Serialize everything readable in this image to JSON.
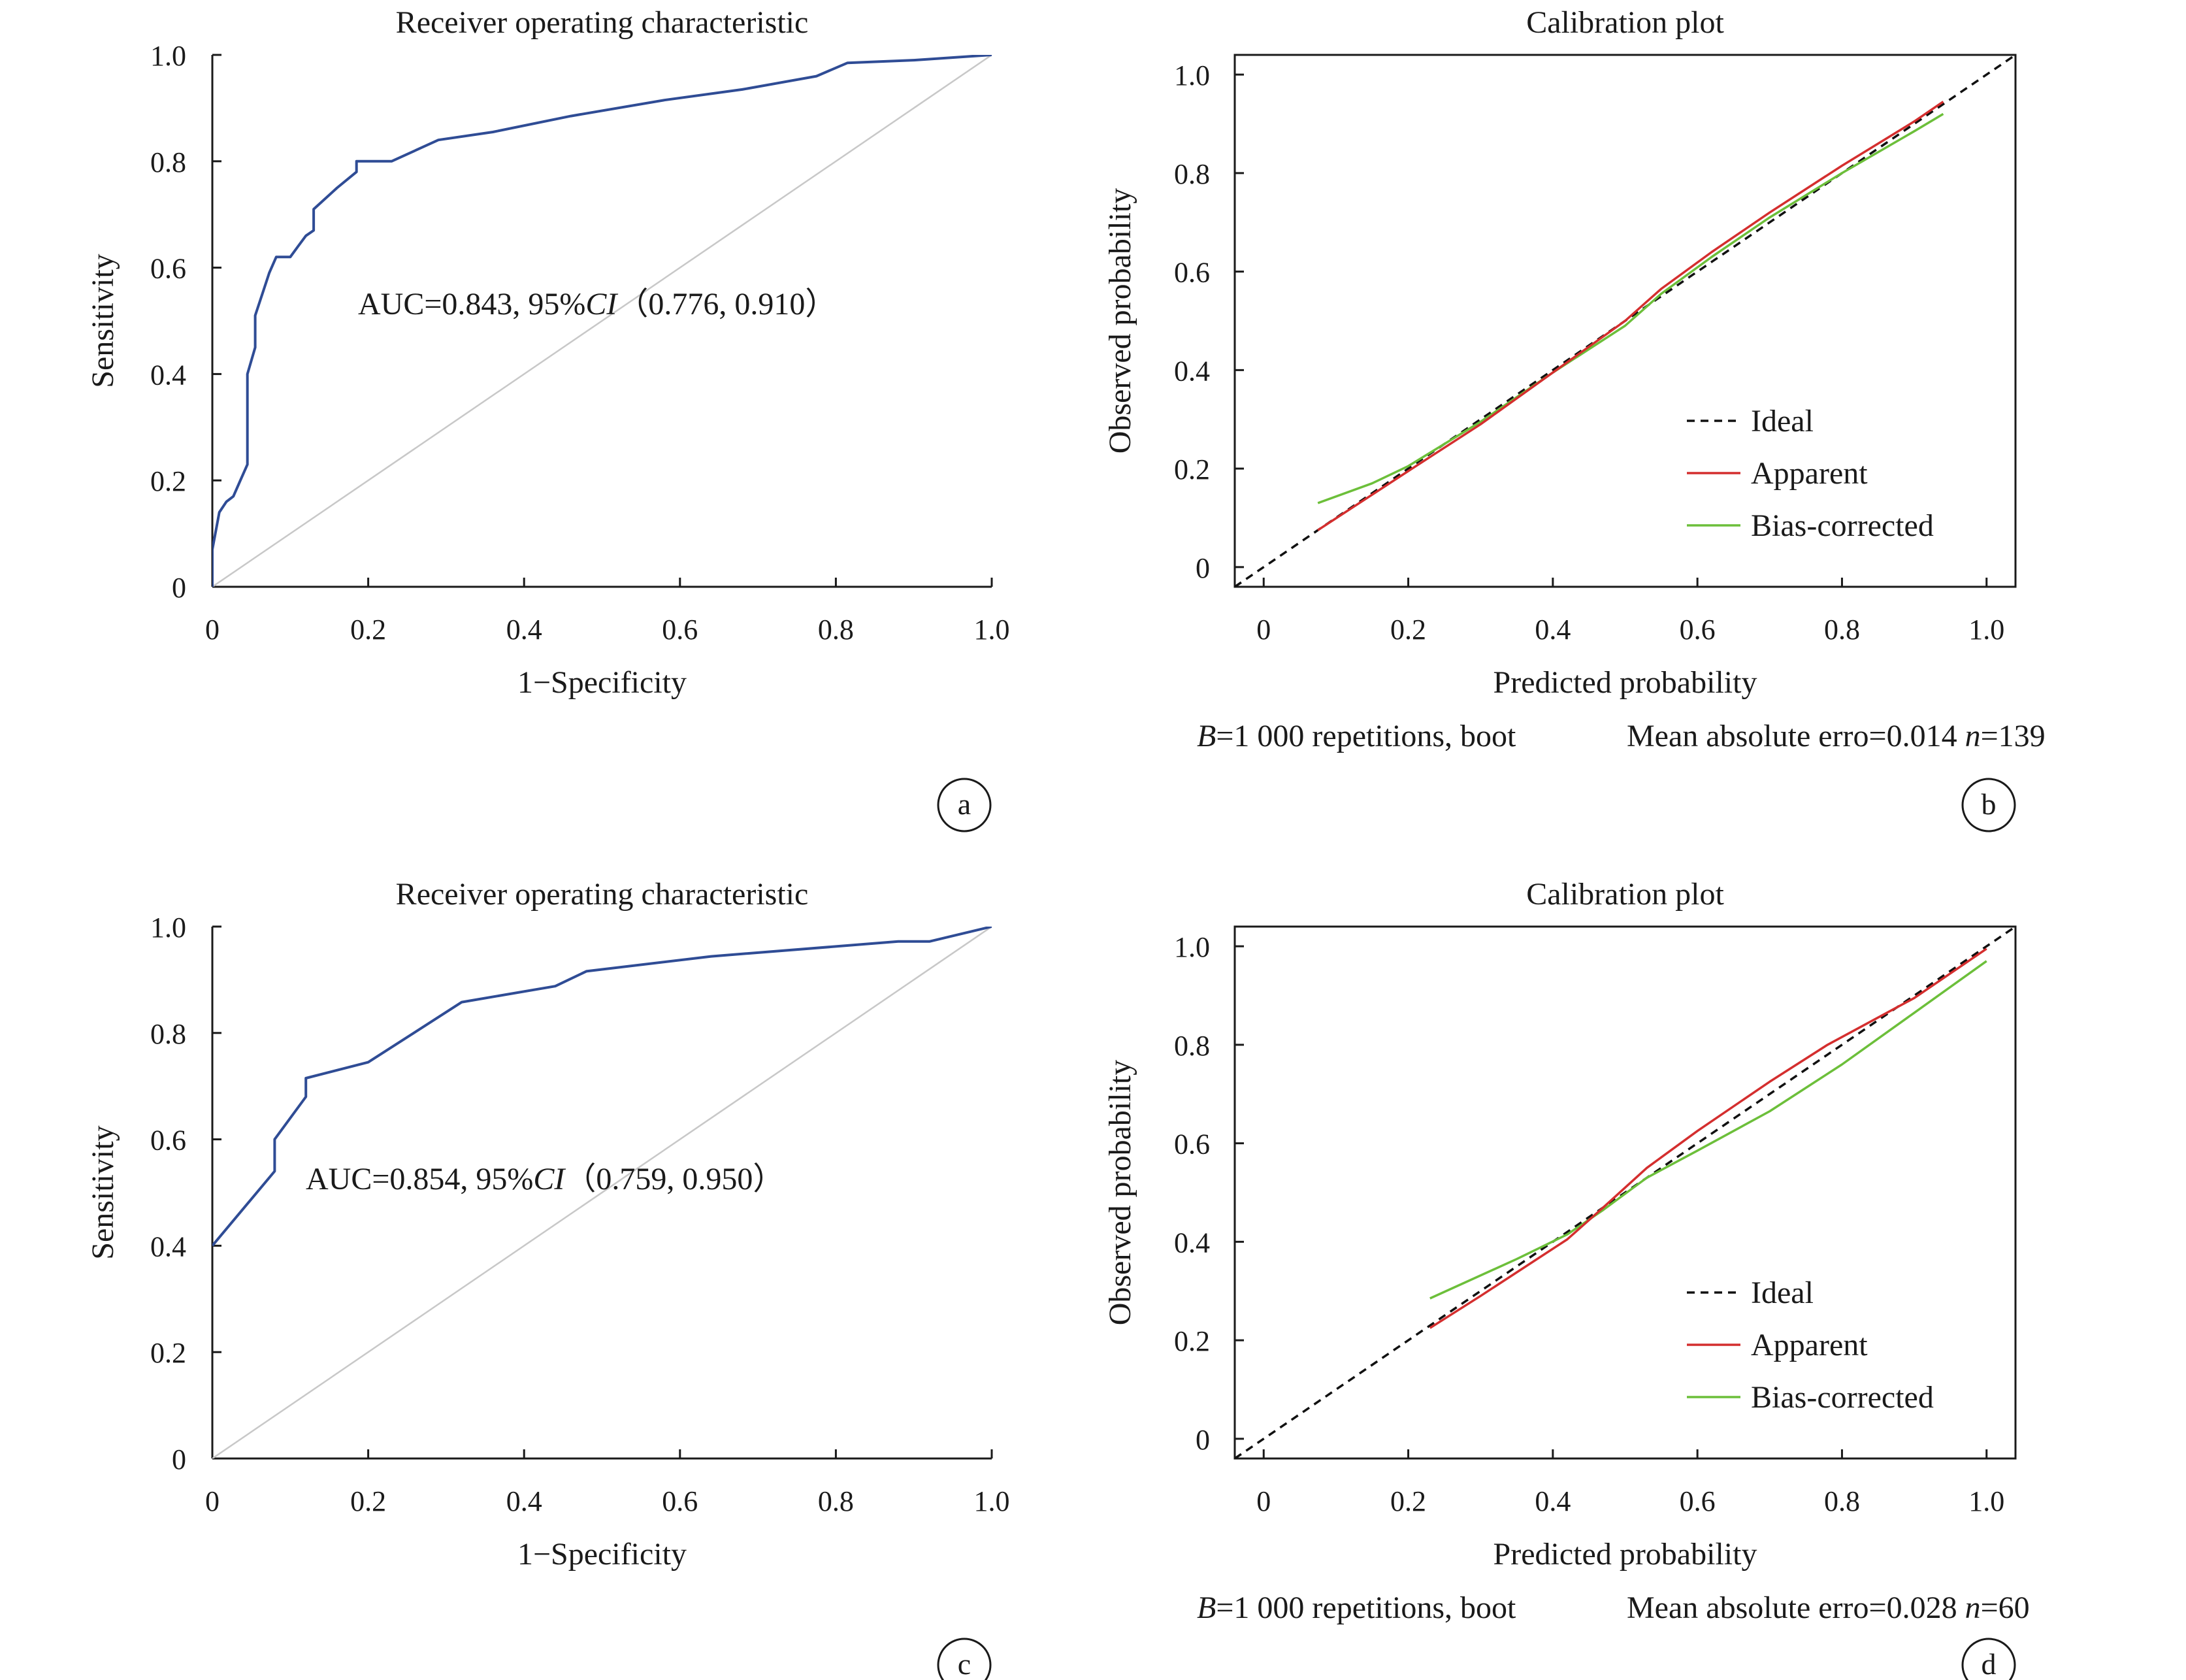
{
  "colors": {
    "roc": "#2f4c95",
    "reference": "#c8c8c8",
    "ideal": "#111111",
    "apparent": "#d42e2e",
    "bias_corrected": "#6cbf3a",
    "axis": "#1a1a1a"
  },
  "panels": [
    {
      "letter": "a",
      "caption_parts": [
        "AUC=0.843, 95%",
        "CI",
        "（0.776, 0.910）"
      ],
      "chart_data": {
        "type": "line",
        "title": "Receiver operating characteristic",
        "xlabel": "1−Specificity",
        "ylabel": "Sensitivity",
        "xlim": [
          0,
          1
        ],
        "ylim": [
          0,
          1
        ],
        "xticks": [
          "0",
          "0.2",
          "0.4",
          "0.6",
          "0.8",
          "1.0"
        ],
        "yticks": [
          "0",
          "0.2",
          "0.4",
          "0.6",
          "0.8",
          "1.0"
        ],
        "series": [
          {
            "role": "roc",
            "x": [
              0,
              0,
              0.009,
              0.018,
              0.027,
              0.036,
              0.045,
              0.045,
              0.055,
              0.055,
              0.064,
              0.073,
              0.082,
              0.091,
              0.1,
              0.11,
              0.12,
              0.13,
              0.13,
              0.16,
              0.185,
              0.185,
              0.23,
              0.29,
              0.36,
              0.46,
              0.58,
              0.68,
              0.775,
              0.815,
              0.9,
              1.0
            ],
            "y": [
              0,
              0.07,
              0.14,
              0.16,
              0.17,
              0.2,
              0.23,
              0.4,
              0.45,
              0.51,
              0.55,
              0.59,
              0.62,
              0.62,
              0.62,
              0.64,
              0.66,
              0.67,
              0.71,
              0.75,
              0.78,
              0.8,
              0.8,
              0.84,
              0.855,
              0.885,
              0.915,
              0.935,
              0.96,
              0.985,
              0.99,
              1.0
            ]
          },
          {
            "role": "reference",
            "x": [
              0,
              1
            ],
            "y": [
              0,
              1
            ]
          }
        ]
      }
    },
    {
      "letter": "b",
      "footnote_parts": [
        "B",
        "=1 000 repetitions, boot",
        "Mean absolute erro=0.014 ",
        "n",
        "=139"
      ],
      "chart_data": {
        "type": "line",
        "title": "Calibration plot",
        "xlabel": "Predicted probability",
        "ylabel": "Observed probability",
        "xlim": [
          -0.04,
          1.04
        ],
        "ylim": [
          -0.04,
          1.04
        ],
        "xticks": [
          "0",
          "0.2",
          "0.4",
          "0.6",
          "0.8",
          "1.0"
        ],
        "yticks": [
          "0",
          "0.2",
          "0.4",
          "0.6",
          "0.8",
          "1.0"
        ],
        "legend": "right",
        "series": [
          {
            "name": "Ideal",
            "role": "ideal",
            "x": [
              -0.04,
              1.04
            ],
            "y": [
              -0.04,
              1.04
            ]
          },
          {
            "name": "Apparent",
            "role": "apparent",
            "x": [
              0.075,
              0.2,
              0.3,
              0.4,
              0.5,
              0.55,
              0.62,
              0.7,
              0.8,
              0.9,
              0.94
            ],
            "y": [
              0.075,
              0.195,
              0.29,
              0.395,
              0.5,
              0.565,
              0.64,
              0.72,
              0.815,
              0.905,
              0.945
            ]
          },
          {
            "name": "Bias-corrected",
            "role": "bias_corrected",
            "x": [
              0.075,
              0.15,
              0.2,
              0.3,
              0.4,
              0.5,
              0.55,
              0.62,
              0.7,
              0.8,
              0.9,
              0.94
            ],
            "y": [
              0.13,
              0.17,
              0.205,
              0.295,
              0.395,
              0.49,
              0.555,
              0.63,
              0.71,
              0.8,
              0.885,
              0.92
            ]
          }
        ]
      }
    },
    {
      "letter": "c",
      "caption_parts": [
        "AUC=0.854, 95%",
        "CI",
        "（0.759, 0.950）"
      ],
      "chart_data": {
        "type": "line",
        "title": "Receiver operating characteristic",
        "xlabel": "1−Specificity",
        "ylabel": "Sensitivity",
        "xlim": [
          0,
          1
        ],
        "ylim": [
          0,
          1
        ],
        "xticks": [
          "0",
          "0.2",
          "0.4",
          "0.6",
          "0.8",
          "1.0"
        ],
        "yticks": [
          "0",
          "0.2",
          "0.4",
          "0.6",
          "0.8",
          "1.0"
        ],
        "series": [
          {
            "role": "roc",
            "x": [
              0,
              0.08,
              0.08,
              0.12,
              0.12,
              0.2,
              0.32,
              0.44,
              0.48,
              0.64,
              0.88,
              0.92,
              1.0
            ],
            "y": [
              0.4,
              0.54,
              0.6,
              0.68,
              0.715,
              0.745,
              0.858,
              0.888,
              0.916,
              0.944,
              0.972,
              0.972,
              1.0
            ]
          },
          {
            "role": "reference",
            "x": [
              0,
              1
            ],
            "y": [
              0,
              1
            ]
          }
        ]
      }
    },
    {
      "letter": "d",
      "footnote_parts": [
        "B",
        "=1 000 repetitions, boot",
        "Mean absolute erro=0.028 ",
        "n",
        "=60"
      ],
      "chart_data": {
        "type": "line",
        "title": "Calibration plot",
        "xlabel": "Predicted probability",
        "ylabel": "Observed probability",
        "xlim": [
          -0.04,
          1.04
        ],
        "ylim": [
          -0.04,
          1.04
        ],
        "xticks": [
          "0",
          "0.2",
          "0.4",
          "0.6",
          "0.8",
          "1.0"
        ],
        "yticks": [
          "0",
          "0.2",
          "0.4",
          "0.6",
          "0.8",
          "1.0"
        ],
        "legend": "right",
        "series": [
          {
            "name": "Ideal",
            "role": "ideal",
            "x": [
              -0.04,
              1.04
            ],
            "y": [
              -0.04,
              1.04
            ]
          },
          {
            "name": "Apparent",
            "role": "apparent",
            "x": [
              0.23,
              0.3,
              0.42,
              0.47,
              0.53,
              0.6,
              0.7,
              0.78,
              0.9,
              1.0
            ],
            "y": [
              0.225,
              0.29,
              0.405,
              0.47,
              0.55,
              0.625,
              0.725,
              0.8,
              0.895,
              0.995
            ]
          },
          {
            "name": "Bias-corrected",
            "role": "bias_corrected",
            "x": [
              0.23,
              0.35,
              0.42,
              0.47,
              0.53,
              0.6,
              0.7,
              0.8,
              0.9,
              1.0
            ],
            "y": [
              0.285,
              0.365,
              0.415,
              0.465,
              0.53,
              0.585,
              0.665,
              0.76,
              0.865,
              0.97
            ]
          }
        ]
      }
    }
  ]
}
